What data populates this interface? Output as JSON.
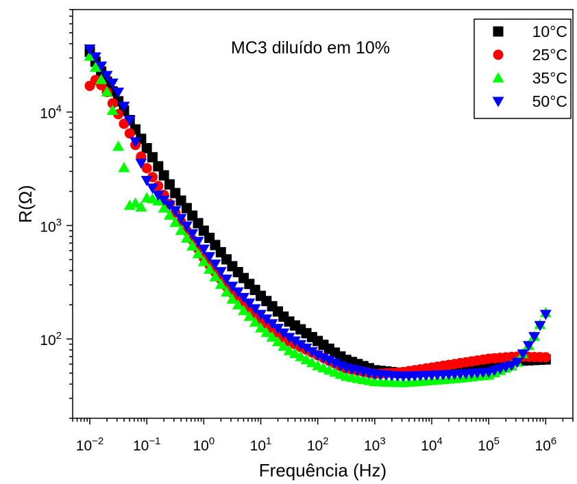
{
  "chart_data": {
    "type": "scatter",
    "annotation": "MC3 diluído em 10%",
    "xlabel": "Frequência (Hz)",
    "ylabel": "R(Ω)",
    "x_scale": "log",
    "y_scale": "log",
    "xlim": [
      0.005,
      3000000
    ],
    "ylim": [
      20,
      80000
    ],
    "x_ticks": [
      {
        "base": "10",
        "exp": "−2",
        "value": 0.01
      },
      {
        "base": "10",
        "exp": "−1",
        "value": 0.1
      },
      {
        "base": "10",
        "exp": "0",
        "value": 1
      },
      {
        "base": "10",
        "exp": "1",
        "value": 10
      },
      {
        "base": "10",
        "exp": "2",
        "value": 100
      },
      {
        "base": "10",
        "exp": "3",
        "value": 1000
      },
      {
        "base": "10",
        "exp": "4",
        "value": 10000
      },
      {
        "base": "10",
        "exp": "5",
        "value": 100000
      },
      {
        "base": "10",
        "exp": "6",
        "value": 1000000
      }
    ],
    "y_ticks": [
      {
        "base": "10",
        "exp": "2",
        "value": 100
      },
      {
        "base": "10",
        "exp": "3",
        "value": 1000
      },
      {
        "base": "10",
        "exp": "4",
        "value": 10000
      }
    ],
    "legend_position": "top-right",
    "grid": false,
    "series": [
      {
        "name": "10°C",
        "marker": "square",
        "color": "#000000",
        "x": [
          0.01,
          0.03,
          0.1,
          0.3,
          1,
          3,
          10,
          30,
          100,
          300,
          1000,
          3000,
          10000,
          30000,
          100000,
          300000,
          1000000
        ],
        "y": [
          34000,
          13000,
          4800,
          2000,
          900,
          450,
          240,
          145,
          96,
          66,
          53,
          50,
          52,
          55,
          60,
          64,
          66
        ]
      },
      {
        "name": "25°C",
        "marker": "circle",
        "color": "#ff0000",
        "x": [
          0.01,
          0.013,
          0.02,
          0.03,
          0.05,
          0.1,
          0.3,
          1,
          3,
          10,
          30,
          100,
          300,
          1000,
          3000,
          10000,
          30000,
          100000,
          300000,
          1000000
        ],
        "y": [
          17000,
          19500,
          15000,
          10000,
          6500,
          3200,
          1350,
          520,
          260,
          150,
          96,
          72,
          55,
          49,
          51,
          56,
          61,
          67,
          70,
          69
        ]
      },
      {
        "name": "35°C",
        "marker": "triangle-up",
        "color": "#00ff00",
        "x": [
          0.01,
          0.013,
          0.02,
          0.025,
          0.03,
          0.04,
          0.05,
          0.06,
          0.08,
          0.1,
          0.15,
          0.3,
          1,
          3,
          10,
          30,
          100,
          300,
          1000,
          3000,
          10000,
          30000,
          100000,
          300000,
          600000,
          1000000
        ],
        "y": [
          31000,
          24000,
          15000,
          10500,
          5500,
          3200,
          1500,
          1600,
          1450,
          1750,
          1700,
          1100,
          480,
          230,
          125,
          80,
          58,
          47,
          42,
          41,
          43,
          45,
          48,
          60,
          100,
          170
        ]
      },
      {
        "name": "50°C",
        "marker": "triangle-down",
        "color": "#0000ff",
        "x": [
          0.01,
          0.013,
          0.02,
          0.03,
          0.05,
          0.08,
          0.1,
          0.15,
          0.3,
          1,
          3,
          10,
          30,
          100,
          300,
          1000,
          3000,
          10000,
          30000,
          100000,
          300000,
          600000,
          1000000
        ],
        "y": [
          36000,
          30000,
          21000,
          16000,
          8500,
          3500,
          2500,
          1900,
          1400,
          620,
          300,
          165,
          105,
          72,
          56,
          49,
          47,
          48,
          49,
          51,
          60,
          100,
          165
        ]
      }
    ]
  }
}
